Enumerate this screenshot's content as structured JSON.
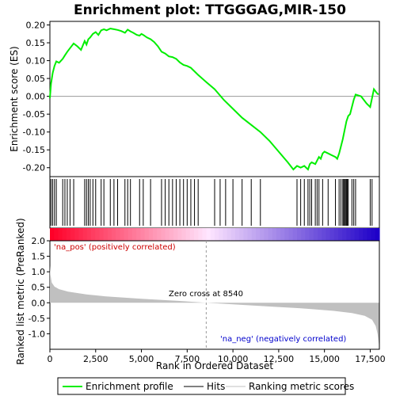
{
  "chart_data": [
    {
      "type": "line",
      "title": "Enrichment plot: TTGGGAG,MIR-150",
      "ylabel": "Enrichment score (ES)",
      "ylim": [
        -0.225,
        0.21
      ],
      "yticks": [
        0.2,
        0.15,
        0.1,
        0.05,
        0.0,
        -0.05,
        -0.1,
        -0.15,
        -0.2
      ],
      "ytick_labels": [
        "0.20",
        "0.15",
        "0.10",
        "0.05",
        "0.00",
        "-0.05",
        "-0.10",
        "-0.15",
        "-0.20"
      ],
      "xlim": [
        0,
        18000
      ],
      "series": [
        {
          "name": "Enrichment profile",
          "color": "#00ee00",
          "x": [
            0,
            60,
            150,
            250,
            350,
            500,
            700,
            820,
            950,
            1100,
            1300,
            1500,
            1700,
            1900,
            2000,
            2100,
            2200,
            2350,
            2500,
            2650,
            2800,
            2950,
            3100,
            3300,
            3500,
            3700,
            3900,
            4100,
            4250,
            4400,
            4550,
            4750,
            4900,
            5000,
            5100,
            5300,
            5500,
            5700,
            5900,
            6100,
            6300,
            6500,
            6700,
            6900,
            7100,
            7300,
            7500,
            7700,
            7900,
            8100,
            8540,
            9000,
            9500,
            10000,
            10500,
            11000,
            11500,
            12000,
            12500,
            13000,
            13300,
            13500,
            13700,
            13900,
            14100,
            14200,
            14300,
            14500,
            14600,
            14700,
            14800,
            14900,
            15000,
            15200,
            15400,
            15600,
            15700,
            15800,
            15900,
            16000,
            16100,
            16200,
            16300,
            16400,
            16500,
            16600,
            16700,
            17000,
            17300,
            17500,
            17700,
            17850,
            17950
          ],
          "values": [
            -0.005,
            0.035,
            0.065,
            0.085,
            0.098,
            0.094,
            0.105,
            0.115,
            0.125,
            0.135,
            0.148,
            0.14,
            0.13,
            0.155,
            0.145,
            0.16,
            0.165,
            0.175,
            0.18,
            0.172,
            0.185,
            0.188,
            0.185,
            0.19,
            0.188,
            0.186,
            0.183,
            0.178,
            0.187,
            0.182,
            0.178,
            0.172,
            0.17,
            0.175,
            0.172,
            0.165,
            0.16,
            0.152,
            0.14,
            0.125,
            0.12,
            0.112,
            0.11,
            0.105,
            0.095,
            0.088,
            0.085,
            0.08,
            0.07,
            0.06,
            0.04,
            0.02,
            -0.01,
            -0.035,
            -0.06,
            -0.08,
            -0.1,
            -0.125,
            -0.155,
            -0.185,
            -0.205,
            -0.195,
            -0.2,
            -0.195,
            -0.205,
            -0.19,
            -0.185,
            -0.19,
            -0.18,
            -0.17,
            -0.175,
            -0.16,
            -0.155,
            -0.16,
            -0.165,
            -0.17,
            -0.175,
            -0.16,
            -0.14,
            -0.12,
            -0.095,
            -0.07,
            -0.055,
            -0.05,
            -0.03,
            -0.01,
            0.005,
            0.0,
            -0.02,
            -0.03,
            0.02,
            0.01,
            0.005
          ]
        }
      ]
    },
    {
      "type": "hits",
      "series": [
        {
          "name": "Hits",
          "color": "#000000",
          "x": [
            60,
            150,
            250,
            350,
            700,
            820,
            950,
            1100,
            1300,
            1900,
            2000,
            2100,
            2200,
            2350,
            2500,
            2800,
            2950,
            3300,
            3500,
            3700,
            4100,
            4250,
            4400,
            4900,
            5100,
            5500,
            6100,
            6300,
            6500,
            6700,
            6900,
            7100,
            7300,
            7500,
            7700,
            7900,
            8100,
            9000,
            9300,
            9600,
            10000,
            10500,
            11000,
            11500,
            13500,
            13700,
            13900,
            14100,
            14200,
            14300,
            14500,
            14600,
            14700,
            14900,
            15200,
            15600,
            15800,
            15900,
            16000,
            16050,
            16100,
            16150,
            16200,
            16250,
            16300,
            16500,
            16600,
            16700,
            17500,
            17600
          ]
        }
      ]
    },
    {
      "type": "area",
      "ylabel": "Ranked list metric (PreRanked)",
      "xlabel": "Rank in Ordered Dataset",
      "ylim": [
        -1.5,
        2.0
      ],
      "yticks": [
        2.0,
        1.5,
        1.0,
        0.5,
        0.0,
        -0.5,
        -1.0
      ],
      "ytick_labels": [
        "2.0",
        "1.5",
        "1.0",
        "0.5",
        "0.0",
        "-0.5",
        "-1.0"
      ],
      "xticks": [
        0,
        2500,
        5000,
        7500,
        10000,
        12500,
        15000,
        17500
      ],
      "xtick_labels": [
        "0",
        "2,500",
        "5,000",
        "7,500",
        "10,000",
        "12,500",
        "15,000",
        "17,500"
      ],
      "xlim": [
        0,
        18000
      ],
      "series": [
        {
          "name": "Ranking metric scores",
          "color": "#c0c0c0",
          "x": [
            0,
            30,
            100,
            250,
            500,
            1000,
            2000,
            3000,
            5000,
            7000,
            8540,
            10000,
            12000,
            14000,
            15500,
            16500,
            17200,
            17600,
            17800,
            17900,
            17980
          ],
          "values": [
            1.2,
            0.9,
            0.65,
            0.52,
            0.44,
            0.36,
            0.27,
            0.21,
            0.13,
            0.06,
            0.0,
            -0.05,
            -0.12,
            -0.19,
            -0.26,
            -0.33,
            -0.42,
            -0.55,
            -0.75,
            -1.0,
            -1.35
          ]
        }
      ],
      "annotations": [
        {
          "text": "'na_pos' (positively correlated)",
          "color": "#cc0000"
        },
        {
          "text": "Zero cross at 8540",
          "color": "#000000"
        },
        {
          "text": "'na_neg' (negatively correlated)",
          "color": "#0000cc"
        }
      ],
      "zero_cross": 8540
    }
  ],
  "legend": {
    "items": [
      {
        "label": "Enrichment profile",
        "color": "#00ee00"
      },
      {
        "label": "Hits",
        "color": "#000000"
      },
      {
        "label": "Ranking metric scores",
        "color": "#c0c0c0"
      }
    ]
  }
}
